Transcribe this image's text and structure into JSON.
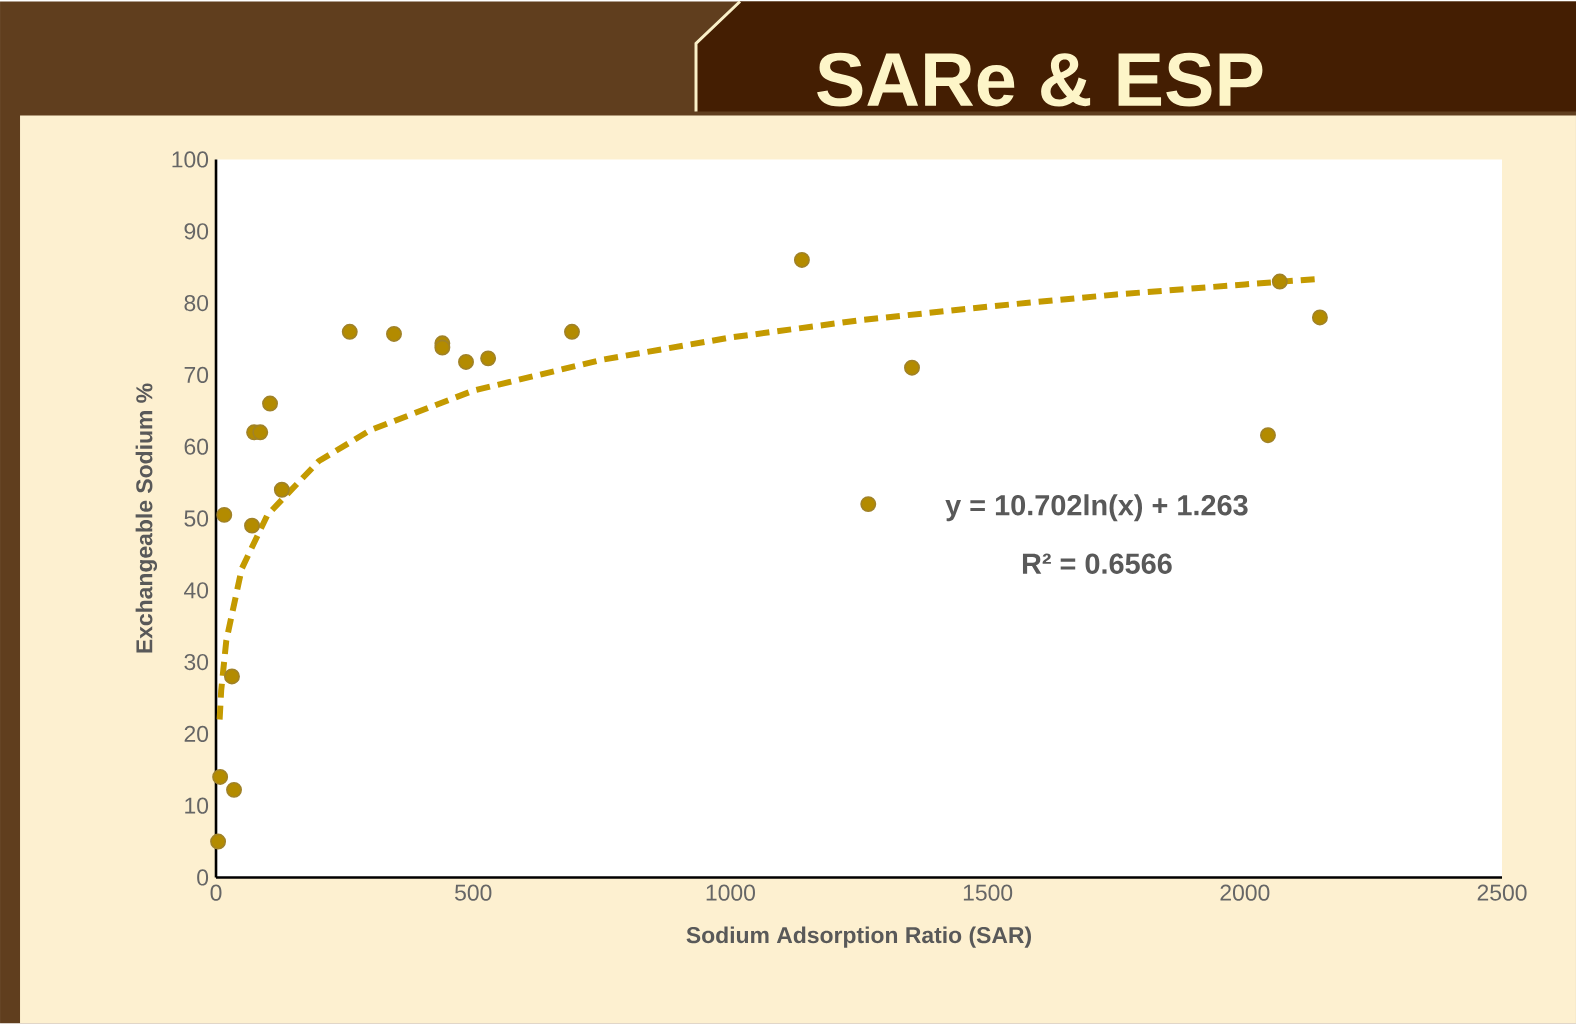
{
  "chart_data": {
    "type": "scatter",
    "title": "SARe & ESP",
    "xlabel": "Sodium Adsorption Ratio (SAR)",
    "ylabel": "Exchangeable Sodium %",
    "xlim": [
      0,
      2500
    ],
    "xticks": [
      0,
      500,
      1000,
      1500,
      2000,
      2500
    ],
    "ylim": [
      0,
      100
    ],
    "yticks": [
      0,
      10,
      20,
      30,
      40,
      50,
      60,
      70,
      80,
      90,
      100
    ],
    "grid": false,
    "annotations": [
      "y = 10.702ln(x) + 1.263",
      "R² = 0.6566"
    ],
    "series": [
      {
        "color": "#b38b00",
        "marker": "circle",
        "x": [
          4,
          8,
          35,
          31,
          16,
          70,
          74,
          86,
          105,
          128,
          260,
          346,
          440,
          440,
          486,
          529,
          692,
          1139,
          1353,
          1268,
          2045,
          2068,
          2146
        ],
        "values": [
          5,
          14,
          12.2,
          28,
          50.5,
          49,
          62,
          62,
          66,
          54,
          76,
          75.7,
          74.4,
          73.8,
          71.8,
          72.3,
          76,
          86,
          71,
          52,
          61.6,
          83,
          78
        ]
      },
      {
        "type": "line",
        "color": "#c49a00",
        "marker": "none",
        "line_style": "dashed",
        "x": [
          7,
          10,
          20,
          50,
          100,
          200,
          300,
          500,
          750,
          1000,
          1250,
          1500,
          1750,
          2000,
          2150
        ],
        "values": [
          22,
          26,
          33,
          43,
          50.5,
          58,
          62.3,
          67.8,
          72.1,
          75.2,
          77.6,
          79.5,
          81.2,
          82.6,
          83.4
        ]
      }
    ]
  }
}
